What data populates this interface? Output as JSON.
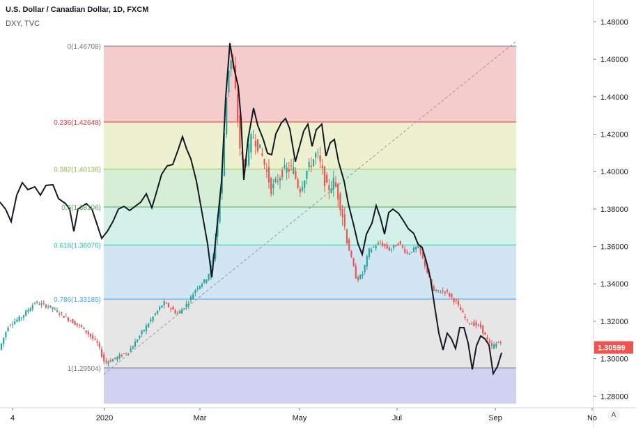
{
  "chart_data": {
    "type": "candlestick",
    "title": "U.S. Dollar / Canadian Dollar, 1D, FXCM",
    "overlay_label": "DXY, TVC",
    "current_price": "1.30599",
    "y_ticks": [
      "1.48000",
      "1.46000",
      "1.44000",
      "1.42000",
      "1.40000",
      "1.38000",
      "1.36000",
      "1.34000",
      "1.32000",
      "1.30000",
      "1.28000"
    ],
    "ylim": [
      1.276,
      1.4835
    ],
    "x_ticks": [
      "4",
      "2020",
      "Mar",
      "May",
      "Jul",
      "Sep",
      "No"
    ],
    "fib_levels": [
      {
        "label": "0(1.46708)",
        "value": 1.46708,
        "color": "#787b86",
        "zone_fill": "#f4cccc"
      },
      {
        "label": "0.236(1.42648)",
        "value": 1.42648,
        "color": "#e53935",
        "zone_fill": "#eef1d0"
      },
      {
        "label": "0.382(1.40136)",
        "value": 1.40136,
        "color": "#8bc34a",
        "zone_fill": "#d5eed5"
      },
      {
        "label": "0.5(1.38106)",
        "value": 1.38106,
        "color": "#4caf50",
        "zone_fill": "#d3f1e8"
      },
      {
        "label": "0.618(1.36076)",
        "value": 1.36076,
        "color": "#26c6a0",
        "zone_fill": "#d2e5f3"
      },
      {
        "label": "0.786(1.33185)",
        "value": 1.33185,
        "color": "#42a5f5",
        "zone_fill": "#e6e6e6"
      },
      {
        "label": "1(1.29504)",
        "value": 1.29504,
        "color": "#787b86",
        "zone_fill": "#d1d1f1"
      }
    ],
    "grid": false,
    "colors": {
      "up": "#26a69a",
      "down": "#ef5350",
      "overlay": "#131722",
      "price_tag": "#ef5350"
    }
  },
  "ui": {
    "corner_button": "A"
  }
}
